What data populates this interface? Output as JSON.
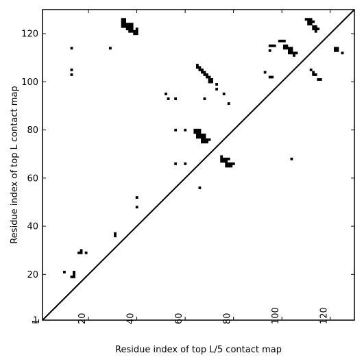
{
  "chart_data": {
    "type": "heatmap",
    "xlabel": "Residue index of top L/5 contact map",
    "ylabel": "Residue index of top L contact map",
    "xlim": [
      1,
      130
    ],
    "ylim": [
      1,
      130
    ],
    "x_ticks": [
      "1",
      "20",
      "40",
      "60",
      "80",
      "100",
      "120"
    ],
    "y_ticks": [
      "1",
      "20",
      "40",
      "60",
      "80",
      "100",
      "120"
    ],
    "diagonal": true,
    "grid": false,
    "cell_color": "#000000",
    "upper_contacts": [
      [
        34,
        126
      ],
      [
        35,
        126
      ],
      [
        34,
        125
      ],
      [
        35,
        125
      ],
      [
        34,
        124
      ],
      [
        35,
        124
      ],
      [
        36,
        124
      ],
      [
        37,
        124
      ],
      [
        38,
        124
      ],
      [
        34,
        123
      ],
      [
        35,
        123
      ],
      [
        36,
        123
      ],
      [
        37,
        123
      ],
      [
        38,
        123
      ],
      [
        36,
        122
      ],
      [
        37,
        122
      ],
      [
        38,
        122
      ],
      [
        40,
        122
      ],
      [
        37,
        121
      ],
      [
        38,
        121
      ],
      [
        39,
        121
      ],
      [
        40,
        121
      ],
      [
        39,
        120
      ],
      [
        40,
        120
      ],
      [
        65,
        107
      ],
      [
        65,
        106
      ],
      [
        66,
        106
      ],
      [
        66,
        105
      ],
      [
        67,
        105
      ],
      [
        67,
        104
      ],
      [
        68,
        104
      ],
      [
        68,
        103
      ],
      [
        69,
        103
      ],
      [
        69,
        102
      ],
      [
        70,
        102
      ],
      [
        70,
        101
      ],
      [
        71,
        101
      ],
      [
        70,
        100
      ],
      [
        71,
        100
      ],
      [
        73,
        99
      ],
      [
        73,
        97
      ],
      [
        76,
        95
      ],
      [
        68,
        93
      ],
      [
        78,
        91
      ],
      [
        99,
        117
      ],
      [
        100,
        117
      ],
      [
        101,
        117
      ],
      [
        95,
        115
      ],
      [
        96,
        115
      ],
      [
        97,
        115
      ],
      [
        101,
        115
      ],
      [
        102,
        115
      ],
      [
        95,
        113
      ],
      [
        101,
        114
      ],
      [
        102,
        114
      ],
      [
        103,
        114
      ],
      [
        104,
        114
      ],
      [
        103,
        113
      ],
      [
        104,
        113
      ],
      [
        103,
        112
      ],
      [
        104,
        112
      ],
      [
        105,
        112
      ],
      [
        106,
        112
      ],
      [
        105,
        111
      ],
      [
        93,
        104
      ],
      [
        95,
        102
      ],
      [
        96,
        102
      ],
      [
        110,
        126
      ],
      [
        111,
        126
      ],
      [
        112,
        126
      ],
      [
        111,
        125
      ],
      [
        112,
        125
      ],
      [
        113,
        125
      ],
      [
        111,
        124
      ],
      [
        112,
        124
      ],
      [
        113,
        123
      ],
      [
        114,
        123
      ],
      [
        113,
        122
      ],
      [
        114,
        122
      ],
      [
        115,
        122
      ],
      [
        114,
        121
      ],
      [
        112,
        105
      ],
      [
        113,
        104
      ],
      [
        113,
        103
      ],
      [
        114,
        103
      ],
      [
        115,
        101
      ],
      [
        116,
        101
      ],
      [
        122,
        114
      ],
      [
        123,
        114
      ],
      [
        122,
        113
      ],
      [
        123,
        113
      ],
      [
        125,
        112
      ]
    ],
    "lower_contacts": [
      [
        13,
        114
      ],
      [
        29,
        114
      ],
      [
        13,
        105
      ],
      [
        13,
        103
      ],
      [
        52,
        95
      ],
      [
        53,
        93
      ],
      [
        56,
        93
      ],
      [
        56,
        80
      ],
      [
        60,
        80
      ],
      [
        64,
        80
      ],
      [
        65,
        80
      ],
      [
        66,
        80
      ],
      [
        64,
        79
      ],
      [
        65,
        79
      ],
      [
        66,
        79
      ],
      [
        65,
        78
      ],
      [
        66,
        78
      ],
      [
        67,
        78
      ],
      [
        68,
        78
      ],
      [
        65,
        77
      ],
      [
        66,
        77
      ],
      [
        67,
        77
      ],
      [
        68,
        77
      ],
      [
        67,
        76
      ],
      [
        68,
        76
      ],
      [
        69,
        76
      ],
      [
        70,
        76
      ],
      [
        67,
        75
      ],
      [
        68,
        75
      ],
      [
        69,
        75
      ],
      [
        75,
        69
      ],
      [
        75,
        68
      ],
      [
        76,
        68
      ],
      [
        77,
        68
      ],
      [
        78,
        68
      ],
      [
        75,
        67
      ],
      [
        76,
        67
      ],
      [
        77,
        67
      ],
      [
        77,
        66
      ],
      [
        78,
        66
      ],
      [
        79,
        66
      ],
      [
        80,
        66
      ],
      [
        77,
        65
      ],
      [
        78,
        65
      ],
      [
        79,
        65
      ],
      [
        56,
        66
      ],
      [
        60,
        66
      ],
      [
        66,
        56
      ],
      [
        104,
        68
      ],
      [
        40,
        52
      ],
      [
        40,
        48
      ],
      [
        31,
        37
      ],
      [
        31,
        36
      ],
      [
        17,
        30
      ],
      [
        16,
        29
      ],
      [
        17,
        29
      ],
      [
        19,
        29
      ],
      [
        10,
        21
      ],
      [
        14,
        21
      ],
      [
        14,
        20
      ],
      [
        13,
        19
      ],
      [
        14,
        19
      ]
    ]
  }
}
